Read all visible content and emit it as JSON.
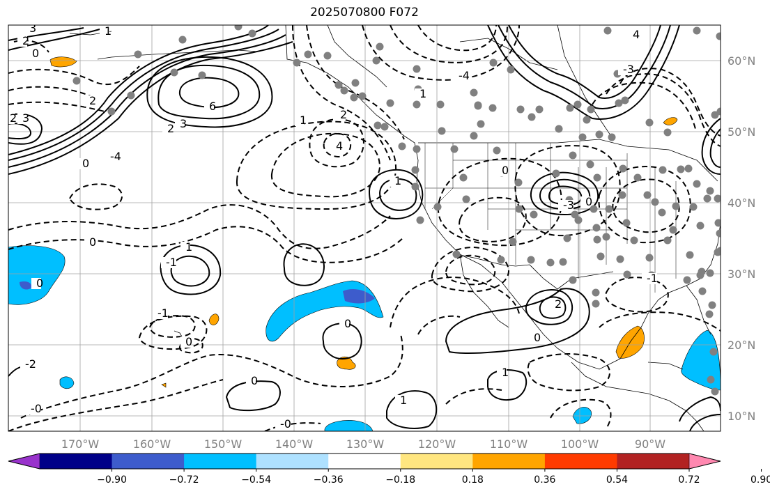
{
  "title": "2025070800 F072",
  "map": {
    "lat_labels": [
      "60°N",
      "50°N",
      "40°N",
      "30°N",
      "20°N",
      "10°N"
    ],
    "lon_labels": [
      "170°W",
      "160°W",
      "150°W",
      "140°W",
      "130°W",
      "120°W",
      "110°W",
      "100°W",
      "90°W"
    ],
    "contour_labels": [
      "3",
      "2",
      "0",
      "1",
      "2",
      "3",
      "6",
      "4",
      "2",
      "0",
      "-4",
      "2",
      "3",
      "1",
      "1",
      "2",
      "-4",
      "-3",
      "4",
      "1",
      "0",
      "0",
      "1",
      "-1",
      "0",
      "1",
      "0",
      "-1",
      "0",
      "-0",
      "-0",
      "0",
      "0",
      "1",
      "2",
      "-1",
      "0",
      "-2",
      "-3"
    ],
    "colors": {
      "line": "#000000",
      "grid": "#a0a0a0",
      "neg_light": "#aee1ff",
      "neg_mid": "#00bfff",
      "neg_dark": "#3d5ccc",
      "pos_light": "#ffe680",
      "pos_mid": "#ffa500",
      "station": "#808080"
    }
  },
  "colorbar": {
    "ticks": [
      "−0.90",
      "−0.72",
      "−0.54",
      "−0.36",
      "−0.18",
      "0.18",
      "0.36",
      "0.54",
      "0.72",
      "0.90"
    ],
    "colors": [
      "#9933cc",
      "#000088",
      "#3d5ccc",
      "#00bfff",
      "#aee1ff",
      "#ffffff",
      "#ffe680",
      "#ffa500",
      "#ff3b00",
      "#b22222",
      "#ff88b0"
    ]
  }
}
